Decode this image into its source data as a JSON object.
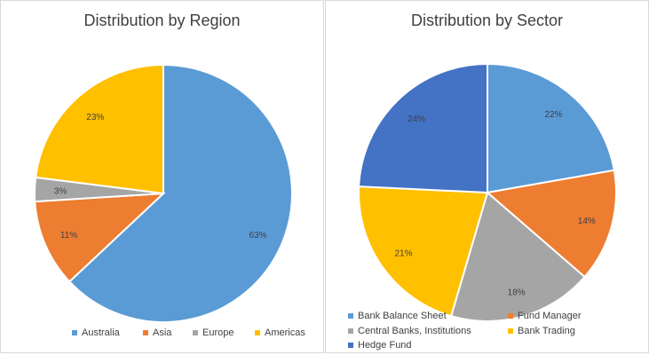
{
  "chart_data": [
    {
      "type": "pie",
      "title": "Distribution by Region",
      "categories": [
        "Australia",
        "Asia",
        "Europe",
        "Americas"
      ],
      "values": [
        63,
        11,
        3,
        23
      ],
      "labels": [
        "63%",
        "11%",
        "3%",
        "23%"
      ],
      "colors": [
        "#5B9BD5",
        "#ED7D31",
        "#A5A5A5",
        "#FFC000"
      ],
      "legend_position": "bottom"
    },
    {
      "type": "pie",
      "title": "Distribution by Sector",
      "categories": [
        "Bank Balance Sheet",
        "Fund Manager",
        "Central Banks, Institutions",
        "Bank Trading",
        "Hedge Fund"
      ],
      "values": [
        22,
        14,
        18,
        21,
        24
      ],
      "labels": [
        "22%",
        "14%",
        "18%",
        "21%",
        "24%"
      ],
      "colors": [
        "#5B9BD5",
        "#ED7D31",
        "#A5A5A5",
        "#FFC000",
        "#4472C4"
      ],
      "legend_position": "bottom"
    }
  ]
}
